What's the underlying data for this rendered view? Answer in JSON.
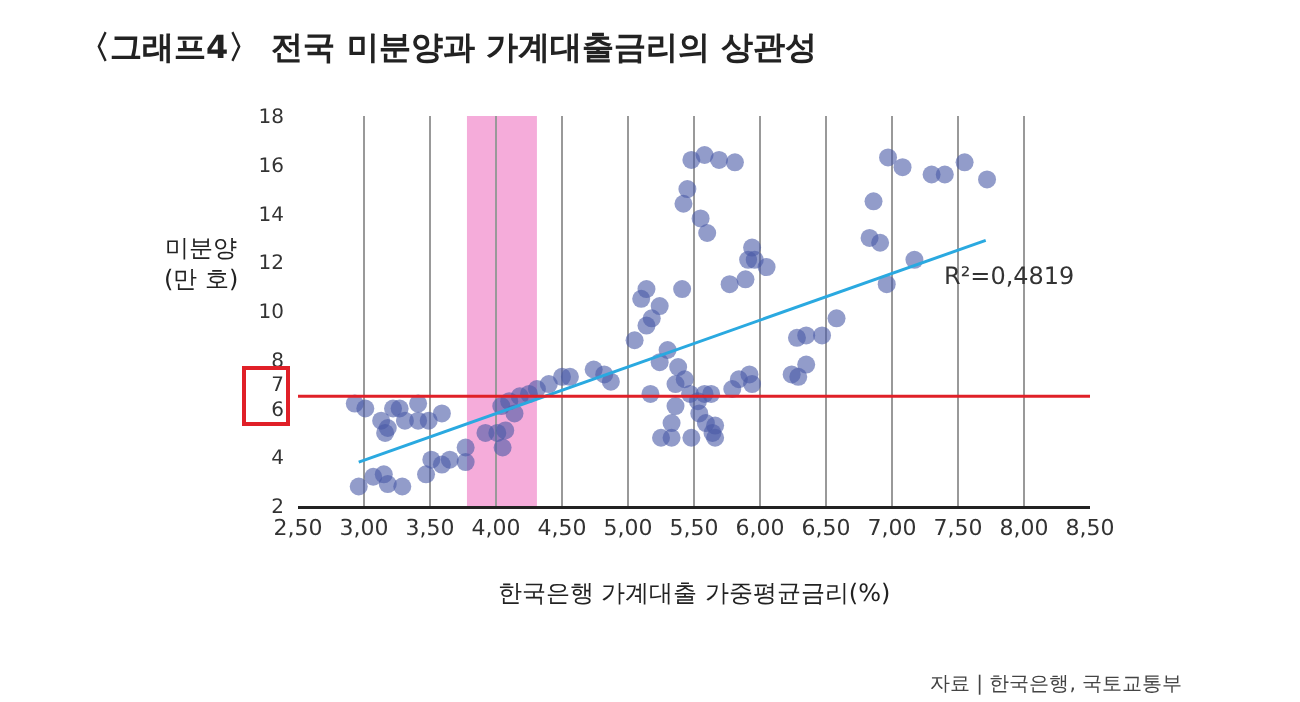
{
  "chart_data": {
    "type": "scatter",
    "title": "〈그래프4〉 전국 미분양과 가계대출금리의 상관성",
    "xlabel": "한국은행 가계대출 가중평균금리(%)",
    "ylabel": "미분양\n(만 호)",
    "annotations": [
      "R²=0,4819",
      "자료 | 한국은행, 국토교통부"
    ],
    "xlim": [
      2.5,
      8.5
    ],
    "xticks": [
      {
        "value": 2.5,
        "label": "2,50"
      },
      {
        "value": 3,
        "label": "3,00"
      },
      {
        "value": 3.5,
        "label": "3,50"
      },
      {
        "value": 4,
        "label": "4,00"
      },
      {
        "value": 4.5,
        "label": "4,50"
      },
      {
        "value": 5,
        "label": "5,00"
      },
      {
        "value": 5.5,
        "label": "5,50"
      },
      {
        "value": 6,
        "label": "6,00"
      },
      {
        "value": 6.5,
        "label": "6,50"
      },
      {
        "value": 7,
        "label": "7,00"
      },
      {
        "value": 7.5,
        "label": "7,50"
      },
      {
        "value": 8,
        "label": "8,00"
      },
      {
        "value": 8.5,
        "label": "8,50"
      }
    ],
    "ylim": [
      2,
      18
    ],
    "yticks": [
      2,
      4,
      6,
      7,
      8,
      10,
      12,
      14,
      16,
      18
    ],
    "grid": "x",
    "series": [
      {
        "marker": "circle",
        "color": "#4a5aa6",
        "x": [
          2.96,
          2.93,
          3.01,
          3.07,
          3.15,
          3.18,
          3.13,
          3.18,
          3.22,
          3.27,
          3.31,
          3.16,
          3.29,
          3.41,
          3.41,
          3.47,
          3.51,
          3.49,
          3.59,
          3.59,
          3.65,
          3.77,
          3.77,
          3.92,
          4.01,
          4.05,
          4.07,
          4.04,
          4.1,
          4.14,
          4.18,
          4.25,
          4.31,
          4.4,
          4.5,
          4.56,
          4.74,
          4.82,
          4.87,
          5.05,
          5.1,
          5.14,
          5.14,
          5.18,
          5.24,
          5.24,
          5.3,
          5.17,
          5.25,
          5.33,
          5.36,
          5.33,
          5.38,
          5.36,
          5.41,
          5.43,
          5.42,
          5.45,
          5.48,
          5.58,
          5.48,
          5.47,
          5.53,
          5.54,
          5.58,
          5.55,
          5.6,
          5.59,
          5.63,
          5.66,
          5.64,
          5.66,
          5.69,
          5.81,
          5.77,
          5.79,
          5.84,
          5.89,
          5.91,
          5.94,
          5.96,
          6.05,
          5.92,
          5.94,
          6.24,
          6.29,
          6.35,
          6.28,
          6.35,
          6.47,
          6.58,
          6.86,
          6.83,
          6.91,
          6.96,
          6.97,
          7.08,
          7.17,
          7.3,
          7.4,
          7.55,
          7.72
        ],
        "values": [
          2.8,
          6.2,
          6.0,
          3.2,
          3.3,
          2.9,
          5.5,
          5.2,
          6.0,
          6.0,
          5.5,
          5.0,
          2.8,
          6.2,
          5.5,
          3.3,
          3.9,
          5.5,
          5.8,
          3.7,
          3.9,
          4.4,
          3.8,
          5.0,
          5.0,
          4.4,
          5.1,
          6.1,
          6.3,
          5.8,
          6.5,
          6.6,
          6.8,
          7.0,
          7.3,
          7.3,
          7.6,
          7.4,
          7.1,
          8.8,
          10.5,
          10.9,
          9.4,
          9.7,
          10.2,
          7.9,
          8.4,
          6.6,
          4.8,
          4.8,
          6.1,
          5.4,
          7.7,
          7.0,
          10.9,
          7.2,
          14.4,
          15.0,
          16.2,
          16.4,
          4.8,
          6.6,
          6.3,
          5.8,
          6.6,
          13.8,
          13.2,
          5.4,
          6.6,
          5.3,
          5.0,
          4.8,
          16.2,
          16.1,
          11.1,
          6.8,
          7.2,
          11.3,
          12.1,
          12.6,
          12.1,
          11.8,
          7.4,
          7.0,
          7.4,
          7.3,
          7.8,
          8.9,
          9.0,
          9.0,
          9.7,
          14.5,
          13.0,
          12.8,
          11.1,
          16.3,
          15.9,
          12.1,
          15.6,
          15.6,
          16.1,
          15.4
        ]
      },
      {
        "type": "line",
        "marker": "none",
        "color": "#2aa9e0",
        "x": [
          2.96,
          7.71
        ],
        "values": [
          3.8,
          12.9
        ]
      }
    ],
    "ref_lines": [
      {
        "axis": "y",
        "value": 6.5,
        "color": "#e02028"
      }
    ],
    "bands": [
      {
        "axis": "x",
        "from": 3.78,
        "to": 4.31,
        "color": "#f4a3d6"
      }
    ]
  }
}
